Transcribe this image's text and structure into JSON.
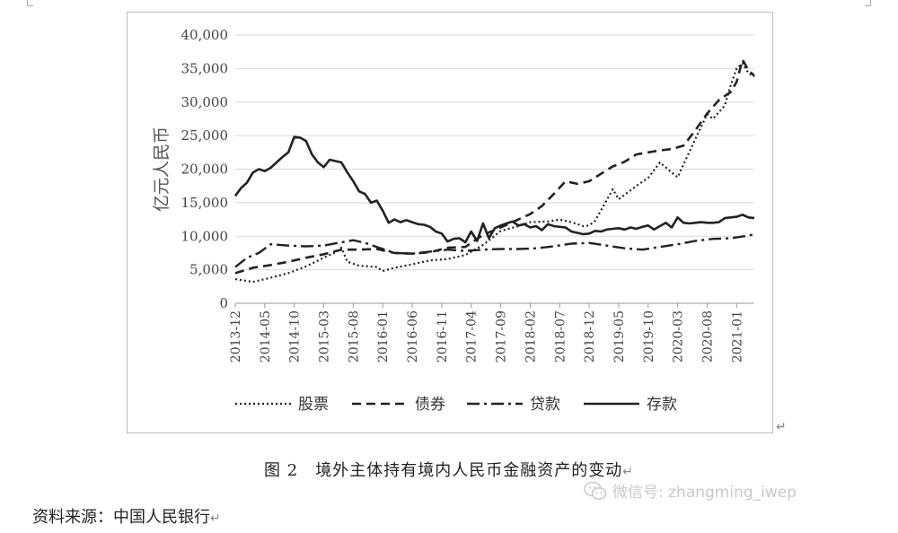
{
  "caption": {
    "text": "图 2　境外主体持有境内人民币金融资产的变动",
    "mark": "↵"
  },
  "source": {
    "text": "资料来源：中国人民银行",
    "mark": "↵"
  },
  "watermark": {
    "text": "微信号: zhangming_iwep",
    "icon": "wechat-icon"
  },
  "chart_mark": "↵",
  "chart_data": {
    "type": "line",
    "title": "",
    "xlabel": "",
    "ylabel": "亿元人民币",
    "ylim": [
      0,
      40000
    ],
    "yticks": [
      0,
      5000,
      10000,
      15000,
      20000,
      25000,
      30000,
      35000,
      40000
    ],
    "ytick_labels": [
      "0",
      "5,000",
      "10,000",
      "15,000",
      "20,000",
      "25,000",
      "30,000",
      "35,000",
      "40,000"
    ],
    "grid": "horizontal",
    "legend_position": "bottom",
    "x_start": "2013-12",
    "x_end": "2021-04",
    "xtick_labels": [
      "2013-12",
      "2014-05",
      "2014-10",
      "2015-03",
      "2015-08",
      "2016-01",
      "2016-06",
      "2016-11",
      "2017-04",
      "2017-09",
      "2018-02",
      "2018-07",
      "2018-12",
      "2019-05",
      "2019-10",
      "2020-03",
      "2020-08",
      "2021-01"
    ],
    "series": [
      {
        "name": "股票",
        "style": "dotted",
        "color": "#222222",
        "points": [
          [
            "2013-12",
            3600
          ],
          [
            "2014-03",
            3200
          ],
          [
            "2014-06",
            3800
          ],
          [
            "2014-09",
            4500
          ],
          [
            "2014-12",
            5500
          ],
          [
            "2015-03",
            6800
          ],
          [
            "2015-05",
            7600
          ],
          [
            "2015-06",
            8300
          ],
          [
            "2015-07",
            6200
          ],
          [
            "2015-09",
            5600
          ],
          [
            "2015-12",
            5400
          ],
          [
            "2016-01",
            4800
          ],
          [
            "2016-03",
            5300
          ],
          [
            "2016-06",
            5800
          ],
          [
            "2016-09",
            6400
          ],
          [
            "2016-12",
            6600
          ],
          [
            "2017-03",
            7200
          ],
          [
            "2017-06",
            8700
          ],
          [
            "2017-09",
            10800
          ],
          [
            "2017-12",
            11500
          ],
          [
            "2018-02",
            12100
          ],
          [
            "2018-05",
            12200
          ],
          [
            "2018-07",
            12500
          ],
          [
            "2018-09",
            12100
          ],
          [
            "2018-11",
            11500
          ],
          [
            "2018-12",
            11600
          ],
          [
            "2019-01",
            12300
          ],
          [
            "2019-04",
            17000
          ],
          [
            "2019-05",
            15500
          ],
          [
            "2019-08",
            17500
          ],
          [
            "2019-10",
            18700
          ],
          [
            "2019-12",
            21000
          ],
          [
            "2020-02",
            19500
          ],
          [
            "2020-03",
            18800
          ],
          [
            "2020-06",
            24500
          ],
          [
            "2020-08",
            28200
          ],
          [
            "2020-09",
            27500
          ],
          [
            "2020-11",
            29500
          ],
          [
            "2020-12",
            32500
          ],
          [
            "2021-01",
            35000
          ],
          [
            "2021-02",
            35800
          ],
          [
            "2021-03",
            34300
          ],
          [
            "2021-04",
            33800
          ]
        ]
      },
      {
        "name": "债券",
        "style": "dashed",
        "color": "#222222",
        "points": [
          [
            "2013-12",
            4500
          ],
          [
            "2014-03",
            5300
          ],
          [
            "2014-06",
            5700
          ],
          [
            "2014-09",
            6200
          ],
          [
            "2014-12",
            6800
          ],
          [
            "2015-03",
            7300
          ],
          [
            "2015-06",
            8000
          ],
          [
            "2015-09",
            8000
          ],
          [
            "2015-12",
            8100
          ],
          [
            "2016-03",
            7500
          ],
          [
            "2016-06",
            7400
          ],
          [
            "2016-09",
            7600
          ],
          [
            "2016-12",
            8300
          ],
          [
            "2017-03",
            8400
          ],
          [
            "2017-06",
            10200
          ],
          [
            "2017-09",
            11300
          ],
          [
            "2017-12",
            12500
          ],
          [
            "2018-02",
            13300
          ],
          [
            "2018-04",
            14500
          ],
          [
            "2018-06",
            16300
          ],
          [
            "2018-08",
            18200
          ],
          [
            "2018-10",
            17800
          ],
          [
            "2018-12",
            18200
          ],
          [
            "2019-02",
            19300
          ],
          [
            "2019-04",
            20400
          ],
          [
            "2019-06",
            21100
          ],
          [
            "2019-08",
            22200
          ],
          [
            "2019-10",
            22500
          ],
          [
            "2019-12",
            22800
          ],
          [
            "2020-02",
            23000
          ],
          [
            "2020-04",
            23500
          ],
          [
            "2020-06",
            25800
          ],
          [
            "2020-08",
            28300
          ],
          [
            "2020-10",
            30300
          ],
          [
            "2020-12",
            31500
          ],
          [
            "2021-01",
            33000
          ],
          [
            "2021-02",
            36300
          ],
          [
            "2021-03",
            34800
          ],
          [
            "2021-04",
            33900
          ]
        ]
      },
      {
        "name": "贷款",
        "style": "dashdot",
        "color": "#222222",
        "points": [
          [
            "2013-12",
            5400
          ],
          [
            "2014-02",
            6800
          ],
          [
            "2014-04",
            7500
          ],
          [
            "2014-06",
            8800
          ],
          [
            "2014-09",
            8600
          ],
          [
            "2014-12",
            8500
          ],
          [
            "2015-03",
            8600
          ],
          [
            "2015-06",
            9100
          ],
          [
            "2015-08",
            9400
          ],
          [
            "2015-10",
            9000
          ],
          [
            "2015-12",
            8400
          ],
          [
            "2016-03",
            7500
          ],
          [
            "2016-06",
            7400
          ],
          [
            "2016-09",
            7700
          ],
          [
            "2016-12",
            8000
          ],
          [
            "2017-03",
            7800
          ],
          [
            "2017-06",
            8000
          ],
          [
            "2017-09",
            8100
          ],
          [
            "2017-12",
            8100
          ],
          [
            "2018-03",
            8200
          ],
          [
            "2018-06",
            8500
          ],
          [
            "2018-09",
            8900
          ],
          [
            "2018-12",
            9000
          ],
          [
            "2019-03",
            8600
          ],
          [
            "2019-06",
            8200
          ],
          [
            "2019-09",
            8000
          ],
          [
            "2019-12",
            8400
          ],
          [
            "2020-03",
            8800
          ],
          [
            "2020-06",
            9300
          ],
          [
            "2020-09",
            9600
          ],
          [
            "2020-12",
            9700
          ],
          [
            "2021-03",
            10100
          ],
          [
            "2021-04",
            10300
          ]
        ]
      },
      {
        "name": "存款",
        "style": "solid",
        "color": "#222222",
        "points": [
          [
            "2013-12",
            16000
          ],
          [
            "2014-01",
            17200
          ],
          [
            "2014-02",
            18000
          ],
          [
            "2014-03",
            19500
          ],
          [
            "2014-04",
            20000
          ],
          [
            "2014-05",
            19700
          ],
          [
            "2014-06",
            20200
          ],
          [
            "2014-07",
            21000
          ],
          [
            "2014-08",
            21800
          ],
          [
            "2014-09",
            22500
          ],
          [
            "2014-10",
            24800
          ],
          [
            "2014-11",
            24700
          ],
          [
            "2014-12",
            24200
          ],
          [
            "2015-01",
            22200
          ],
          [
            "2015-02",
            21000
          ],
          [
            "2015-03",
            20300
          ],
          [
            "2015-04",
            21400
          ],
          [
            "2015-05",
            21200
          ],
          [
            "2015-06",
            21000
          ],
          [
            "2015-07",
            19500
          ],
          [
            "2015-08",
            18200
          ],
          [
            "2015-09",
            16700
          ],
          [
            "2015-10",
            16300
          ],
          [
            "2015-11",
            15000
          ],
          [
            "2015-12",
            15300
          ],
          [
            "2016-01",
            13800
          ],
          [
            "2016-02",
            12000
          ],
          [
            "2016-03",
            12500
          ],
          [
            "2016-04",
            12100
          ],
          [
            "2016-05",
            12400
          ],
          [
            "2016-06",
            12100
          ],
          [
            "2016-07",
            11800
          ],
          [
            "2016-08",
            11700
          ],
          [
            "2016-09",
            11400
          ],
          [
            "2016-10",
            10700
          ],
          [
            "2016-11",
            10400
          ],
          [
            "2016-12",
            9200
          ],
          [
            "2017-01",
            9600
          ],
          [
            "2017-02",
            9700
          ],
          [
            "2017-03",
            9100
          ],
          [
            "2017-04",
            10700
          ],
          [
            "2017-05",
            9300
          ],
          [
            "2017-06",
            11900
          ],
          [
            "2017-07",
            9700
          ],
          [
            "2017-08",
            11200
          ],
          [
            "2017-09",
            11600
          ],
          [
            "2017-10",
            11900
          ],
          [
            "2017-11",
            12200
          ],
          [
            "2017-12",
            11600
          ],
          [
            "2018-01",
            11800
          ],
          [
            "2018-02",
            11300
          ],
          [
            "2018-03",
            11500
          ],
          [
            "2018-04",
            10900
          ],
          [
            "2018-05",
            11800
          ],
          [
            "2018-06",
            11500
          ],
          [
            "2018-07",
            11400
          ],
          [
            "2018-08",
            11300
          ],
          [
            "2018-09",
            10700
          ],
          [
            "2018-10",
            10500
          ],
          [
            "2018-11",
            10300
          ],
          [
            "2018-12",
            10400
          ],
          [
            "2019-01",
            10800
          ],
          [
            "2019-02",
            10700
          ],
          [
            "2019-03",
            11000
          ],
          [
            "2019-04",
            11100
          ],
          [
            "2019-05",
            11200
          ],
          [
            "2019-06",
            11000
          ],
          [
            "2019-07",
            11300
          ],
          [
            "2019-08",
            11100
          ],
          [
            "2019-09",
            11400
          ],
          [
            "2019-10",
            11600
          ],
          [
            "2019-11",
            11000
          ],
          [
            "2019-12",
            11500
          ],
          [
            "2020-01",
            12000
          ],
          [
            "2020-02",
            11300
          ],
          [
            "2020-03",
            12800
          ],
          [
            "2020-04",
            12000
          ],
          [
            "2020-05",
            11900
          ],
          [
            "2020-06",
            12000
          ],
          [
            "2020-07",
            12100
          ],
          [
            "2020-08",
            12000
          ],
          [
            "2020-09",
            12000
          ],
          [
            "2020-10",
            12100
          ],
          [
            "2020-11",
            12700
          ],
          [
            "2020-12",
            12800
          ],
          [
            "2021-01",
            12900
          ],
          [
            "2021-02",
            13200
          ],
          [
            "2021-03",
            12800
          ],
          [
            "2021-04",
            12700
          ]
        ]
      }
    ]
  }
}
